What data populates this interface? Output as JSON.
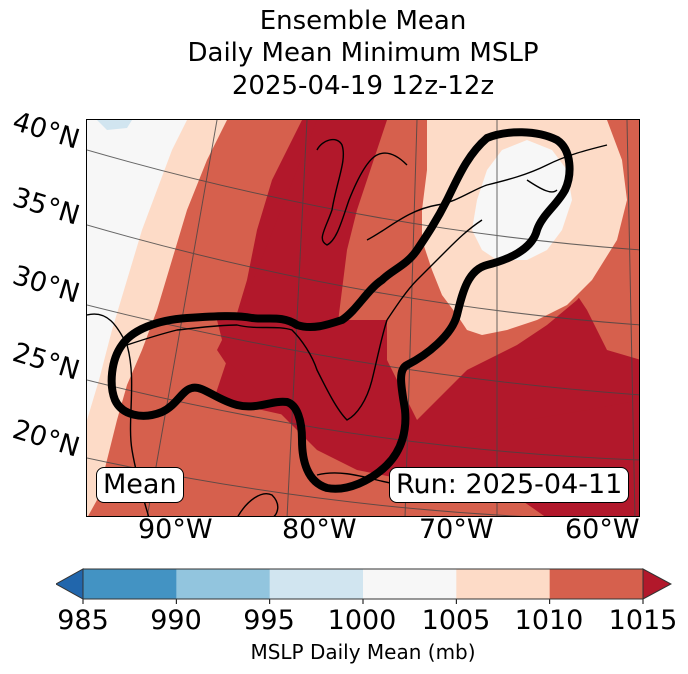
{
  "title": {
    "line1": "Ensemble Mean",
    "line2": "Daily Mean Minimum MSLP",
    "line3": "2025-04-19 12z-12z"
  },
  "map": {
    "lat_labels": [
      "40°N",
      "35°N",
      "30°N",
      "25°N",
      "20°N"
    ],
    "lon_labels": [
      "90°W",
      "80°W",
      "70°W",
      "60°W"
    ],
    "annotation_left": "Mean",
    "annotation_right": "Run: 2025-04-11",
    "fill_colors": {
      "985-990": "#4393c3",
      "990-995": "#92c5de",
      "995-1000": "#d1e5f0",
      "1000-1005": "#f7f7f7",
      "1005-1010": "#fddbc7",
      "1010-1015": "#d6604d",
      ">1015": "#b2182b",
      "<985": "#2166ac"
    },
    "contour_color": "#000000"
  },
  "colorbar": {
    "ticks": [
      "985",
      "990",
      "995",
      "1000",
      "1005",
      "1010",
      "1015"
    ],
    "label": "MSLP Daily Mean (mb)",
    "bins": [
      {
        "range": "<985",
        "color": "#2166ac"
      },
      {
        "range": "985-990",
        "color": "#4393c3"
      },
      {
        "range": "990-995",
        "color": "#92c5de"
      },
      {
        "range": "995-1000",
        "color": "#d1e5f0"
      },
      {
        "range": "1000-1005",
        "color": "#f7f7f7"
      },
      {
        "range": "1005-1010",
        "color": "#fddbc7"
      },
      {
        "range": "1010-1015",
        "color": "#d6604d"
      },
      {
        "range": ">1015",
        "color": "#b2182b"
      }
    ]
  }
}
